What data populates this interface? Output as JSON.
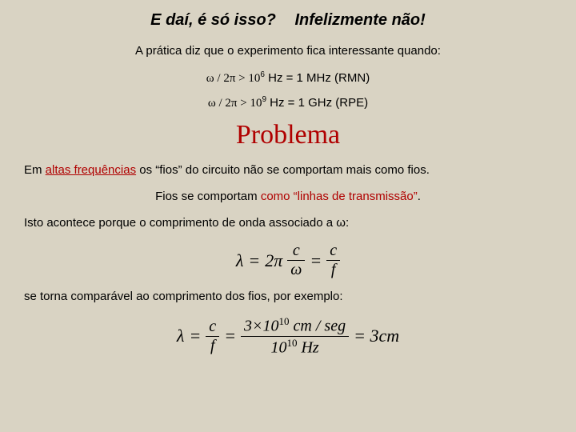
{
  "title": {
    "left": "E daí, é só isso?",
    "right": "Infelizmente não!"
  },
  "subtitle": "A prática diz que o experimento fica interessante quando:",
  "cond1": {
    "pre": "ω / 2π  >  10",
    "exp": "6",
    "post": " Hz = 1 MHz  (RMN)"
  },
  "cond2": {
    "pre": "ω / 2π  >  10",
    "exp": "9",
    "post": " Hz = 1 GHz  (RPE)"
  },
  "problema": "Problema",
  "p1": {
    "a": "Em ",
    "hf": "altas frequências",
    "b": " os “fios” do circuito não se comportam mais como fios."
  },
  "p2": {
    "a": "Fios se comportam ",
    "hl": "como “linhas de transmissão”",
    "b": "."
  },
  "p3": "Isto acontece porque o comprimento de onda associado a ω:",
  "eq1": {
    "lhs": "λ",
    "eq": "=",
    "two_pi": "2π",
    "c": "c",
    "omega": "ω",
    "f": "f"
  },
  "p4": "se torna comparável ao comprimento dos fios, por exemplo:",
  "eq2": {
    "lhs": "λ",
    "eq": "=",
    "c": "c",
    "f": "f",
    "num2": "3×10",
    "num2_exp": "10",
    "num2_unit": " cm / seg",
    "den2": "10",
    "den2_exp": "10",
    "den2_unit": " Hz",
    "rhs": "= 3cm"
  }
}
